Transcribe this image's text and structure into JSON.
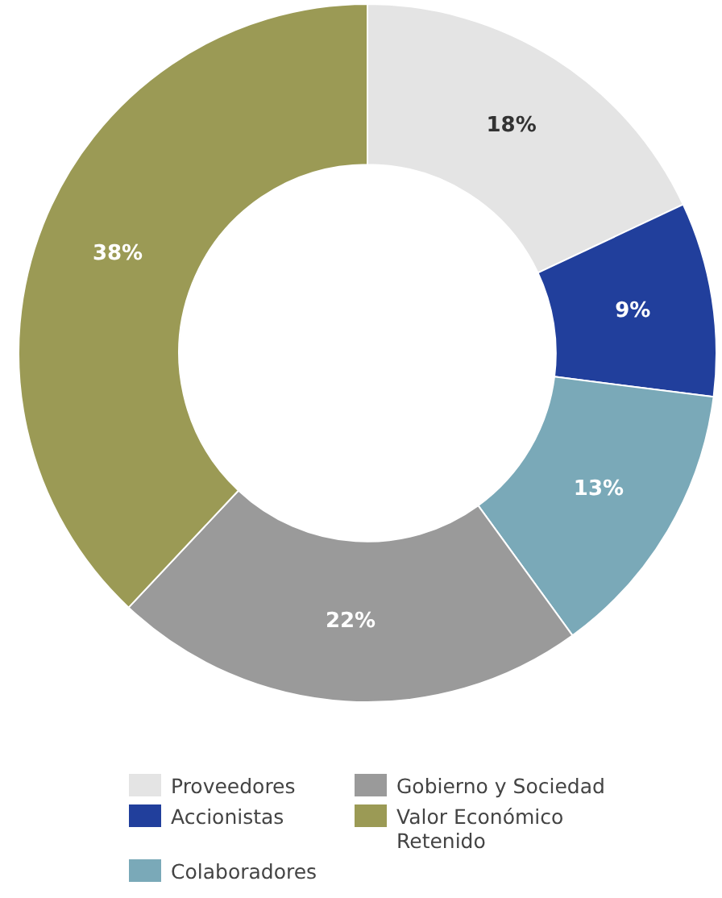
{
  "chart_data": {
    "type": "donut",
    "categories": [
      "Proveedores",
      "Accionistas",
      "Colaboradores",
      "Gobierno y Sociedad",
      "Valor Económico Retenido"
    ],
    "values": [
      18,
      9,
      13,
      22,
      38
    ],
    "colors": [
      "#e4e4e4",
      "#213f9c",
      "#7aa9b8",
      "#9a9a9a",
      "#9b9a55"
    ],
    "value_labels": [
      "18%",
      "9%",
      "13%",
      "22%",
      "38%"
    ],
    "legend": "bottom"
  }
}
